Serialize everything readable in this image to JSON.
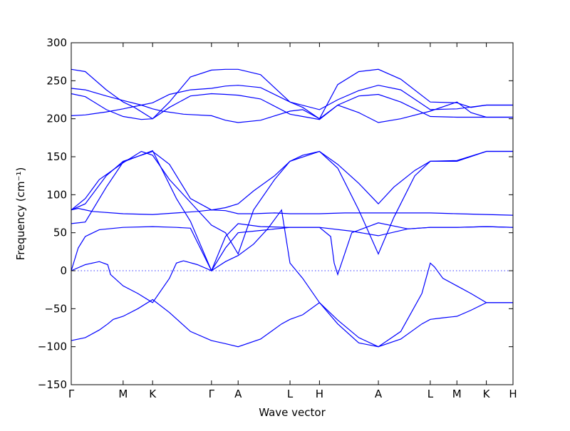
{
  "chart_data": {
    "type": "line",
    "xlabel": "Wave vector",
    "ylabel": "Frequency (cm⁻¹)",
    "ylim": [
      -150,
      300
    ],
    "yticks": [
      -150,
      -100,
      -50,
      0,
      50,
      100,
      150,
      200,
      250,
      300
    ],
    "x_points": [
      {
        "label": "Γ",
        "x": 0.0
      },
      {
        "label": "M",
        "x": 0.74
      },
      {
        "label": "K",
        "x": 1.16
      },
      {
        "label": "Γ",
        "x": 2.0
      },
      {
        "label": "A",
        "x": 2.38
      },
      {
        "label": "L",
        "x": 3.12
      },
      {
        "label": "H",
        "x": 3.54
      },
      {
        "label": "A",
        "x": 4.38
      },
      {
        "label": "L",
        "x": 5.12
      },
      {
        "label": "M",
        "x": 5.5
      },
      {
        "label": "K",
        "x": 5.92
      },
      {
        "label": "H",
        "x": 6.3
      }
    ],
    "xlim": [
      0,
      6.3
    ],
    "zero_line": true,
    "grid": false,
    "series": [
      {
        "x": [
          0,
          0.2,
          0.4,
          0.52,
          0.6,
          0.74,
          0.95,
          1.16,
          1.4,
          1.7,
          2.0,
          2.2,
          2.38,
          2.7,
          3.0,
          3.12,
          3.3,
          3.54,
          3.8,
          4.1,
          4.38,
          4.7,
          5.0,
          5.12,
          5.3,
          5.5,
          5.7,
          5.92,
          6.3
        ],
        "y": [
          -92,
          -88,
          -78,
          -70,
          -64,
          -60,
          -50,
          -38,
          -55,
          -80,
          -92,
          -96,
          -100,
          -90,
          -70,
          -64,
          -58,
          -42,
          -65,
          -88,
          -100,
          -90,
          -70,
          -64,
          -62,
          -60,
          -52,
          -42,
          -42
        ]
      },
      {
        "x": [
          0,
          0.2,
          0.4,
          0.52,
          0.56,
          0.74,
          0.95,
          1.16,
          1.4,
          1.5,
          1.6,
          1.8,
          2.0,
          2.2,
          2.38,
          2.6,
          2.8,
          3.0,
          3.12,
          3.3,
          3.54,
          3.8,
          4.1,
          4.38,
          4.7,
          5.0,
          5.12,
          5.18,
          5.3,
          5.5,
          5.7,
          5.92,
          6.3
        ],
        "y": [
          0,
          8,
          12,
          8,
          -5,
          -20,
          -30,
          -42,
          -10,
          10,
          13,
          8,
          0,
          12,
          20,
          35,
          55,
          80,
          10,
          -10,
          -42,
          -70,
          -95,
          -100,
          -80,
          -30,
          10,
          5,
          -10,
          -20,
          -30,
          -42,
          -42
        ]
      },
      {
        "x": [
          0,
          0.1,
          0.2,
          0.4,
          0.74,
          1.16,
          1.5,
          1.7,
          2.0,
          2.2,
          2.38,
          2.7,
          3.12,
          3.54,
          3.7,
          3.75,
          3.8,
          4.0,
          4.38,
          4.8,
          5.12,
          5.5,
          5.92,
          6.3
        ],
        "y": [
          0,
          30,
          45,
          54,
          57,
          58,
          57,
          56,
          0,
          30,
          50,
          53,
          57,
          57,
          45,
          10,
          -5,
          50,
          63,
          55,
          57,
          57,
          58,
          57
        ]
      },
      {
        "x": [
          0,
          0.2,
          0.5,
          0.74,
          1.16,
          1.5,
          1.7,
          2.0,
          2.2,
          2.38,
          2.7,
          3.12,
          3.54,
          4.0,
          4.38,
          4.8,
          5.12,
          5.5,
          5.92,
          6.3
        ],
        "y": [
          62,
          64,
          110,
          143,
          158,
          95,
          65,
          0,
          45,
          62,
          58,
          57,
          57,
          52,
          46,
          55,
          57,
          57,
          58,
          57
        ]
      },
      {
        "x": [
          0,
          0.1,
          0.3,
          0.74,
          1.16,
          1.5,
          1.8,
          2.0,
          2.2,
          2.38,
          2.6,
          2.9,
          3.12,
          3.54,
          3.9,
          4.2,
          4.38,
          4.6,
          5.12,
          5.5,
          5.92,
          6.3
        ],
        "y": [
          80,
          82,
          78,
          75,
          74,
          76,
          78,
          80,
          79,
          75,
          75,
          76,
          75,
          75,
          76,
          76,
          76,
          76,
          76,
          75,
          74,
          73
        ]
      },
      {
        "x": [
          0,
          0.2,
          0.5,
          0.74,
          1.16,
          1.4,
          1.7,
          2.0,
          2.2,
          2.38,
          2.6,
          2.9,
          3.12,
          3.54,
          3.8,
          4.1,
          4.38,
          4.6,
          4.9,
          5.12,
          5.5,
          5.92,
          6.3
        ],
        "y": [
          80,
          88,
          125,
          144,
          157,
          140,
          95,
          80,
          83,
          88,
          105,
          125,
          144,
          157,
          135,
          80,
          22,
          70,
          125,
          144,
          145,
          157,
          157
        ]
      },
      {
        "x": [
          0,
          0.2,
          0.4,
          0.74,
          1.0,
          1.16,
          1.4,
          1.7,
          2.0,
          2.2,
          2.38,
          2.6,
          2.9,
          3.12,
          3.3,
          3.54,
          3.8,
          4.1,
          4.38,
          4.6,
          4.9,
          5.12,
          5.5,
          5.92,
          6.3
        ],
        "y": [
          80,
          95,
          120,
          142,
          157,
          152,
          120,
          90,
          60,
          50,
          22,
          80,
          120,
          144,
          152,
          157,
          140,
          115,
          88,
          110,
          132,
          144,
          144,
          157,
          157
        ]
      },
      {
        "x": [
          0,
          0.2,
          0.5,
          0.74,
          1.0,
          1.16,
          1.4,
          1.7,
          2.0,
          2.2,
          2.38,
          2.7,
          3.12,
          3.54,
          3.8,
          4.1,
          4.38,
          4.7,
          5.12,
          5.5,
          5.92,
          6.3
        ],
        "y": [
          204,
          205,
          209,
          213,
          218,
          221,
          232,
          238,
          240,
          243,
          244,
          241,
          222,
          212,
          225,
          237,
          244,
          238,
          212,
          213,
          218,
          218
        ]
      },
      {
        "x": [
          0,
          0.2,
          0.5,
          0.74,
          1.0,
          1.16,
          1.3,
          1.6,
          2.0,
          2.2,
          2.38,
          2.7,
          3.12,
          3.3,
          3.54,
          3.8,
          4.1,
          4.38,
          4.7,
          5.12,
          5.5,
          5.7,
          5.92,
          6.3
        ],
        "y": [
          240,
          238,
          230,
          224,
          218,
          213,
          210,
          206,
          204,
          198,
          195,
          198,
          210,
          212,
          200,
          218,
          208,
          195,
          200,
          210,
          222,
          208,
          202,
          202
        ]
      },
      {
        "x": [
          0,
          0.2,
          0.5,
          0.74,
          1.0,
          1.16,
          1.4,
          1.7,
          2.0,
          2.2,
          2.38,
          2.7,
          3.12,
          3.3,
          3.54,
          3.8,
          4.1,
          4.38,
          4.7,
          5.12,
          5.5,
          5.7,
          5.92,
          6.3
        ],
        "y": [
          233,
          229,
          212,
          203,
          199,
          200,
          215,
          230,
          233,
          232,
          231,
          226,
          206,
          203,
          199,
          218,
          230,
          232,
          222,
          203,
          202,
          202,
          202,
          202
        ]
      },
      {
        "x": [
          0,
          0.2,
          0.5,
          0.74,
          0.9,
          1.16,
          1.4,
          1.7,
          2.0,
          2.2,
          2.38,
          2.7,
          3.12,
          3.3,
          3.54,
          3.8,
          4.1,
          4.38,
          4.7,
          5.12,
          5.5,
          5.7,
          5.92,
          6.3
        ],
        "y": [
          265,
          262,
          238,
          222,
          215,
          200,
          222,
          255,
          264,
          265,
          265,
          258,
          222,
          215,
          200,
          245,
          262,
          265,
          252,
          222,
          221,
          215,
          218,
          218
        ]
      }
    ]
  }
}
